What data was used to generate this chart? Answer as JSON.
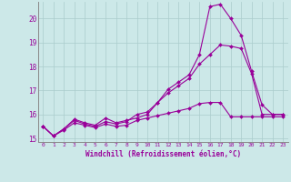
{
  "xlabel": "Windchill (Refroidissement éolien,°C)",
  "bg_color": "#cce8e8",
  "grid_color": "#aacccc",
  "line_color": "#990099",
  "spine_color": "#888888",
  "xlim": [
    -0.5,
    23.5
  ],
  "ylim": [
    14.85,
    20.7
  ],
  "xticks": [
    0,
    1,
    2,
    3,
    4,
    5,
    6,
    7,
    8,
    9,
    10,
    11,
    12,
    13,
    14,
    15,
    16,
    17,
    18,
    19,
    20,
    21,
    22,
    23
  ],
  "yticks": [
    15,
    16,
    17,
    18,
    19,
    20
  ],
  "line1_x": [
    0,
    1,
    2,
    3,
    4,
    5,
    6,
    7,
    8,
    9,
    10,
    11,
    12,
    13,
    14,
    15,
    16,
    17,
    18,
    19,
    20,
    21,
    22,
    23
  ],
  "line1_y": [
    15.5,
    15.1,
    15.4,
    15.8,
    15.65,
    15.55,
    15.85,
    15.65,
    15.75,
    15.85,
    16.0,
    16.5,
    17.05,
    17.35,
    17.65,
    18.5,
    20.5,
    20.6,
    20.0,
    19.3,
    17.8,
    16.4,
    16.0,
    16.0
  ],
  "line2_x": [
    0,
    1,
    2,
    3,
    4,
    5,
    6,
    7,
    8,
    9,
    10,
    11,
    12,
    13,
    14,
    15,
    16,
    17,
    18,
    19,
    20,
    21,
    22,
    23
  ],
  "line2_y": [
    15.5,
    15.1,
    15.4,
    15.75,
    15.6,
    15.5,
    15.7,
    15.6,
    15.7,
    16.0,
    16.1,
    16.5,
    16.9,
    17.2,
    17.5,
    18.1,
    18.5,
    18.9,
    18.85,
    18.75,
    17.7,
    16.0,
    16.0,
    16.0
  ],
  "line3_x": [
    0,
    1,
    2,
    3,
    4,
    5,
    6,
    7,
    8,
    9,
    10,
    11,
    12,
    13,
    14,
    15,
    16,
    17,
    18,
    19,
    20,
    21,
    22,
    23
  ],
  "line3_y": [
    15.5,
    15.1,
    15.35,
    15.65,
    15.55,
    15.45,
    15.6,
    15.5,
    15.55,
    15.75,
    15.85,
    15.95,
    16.05,
    16.15,
    16.25,
    16.45,
    16.5,
    16.5,
    15.9,
    15.9,
    15.9,
    15.9,
    15.9,
    15.9
  ]
}
